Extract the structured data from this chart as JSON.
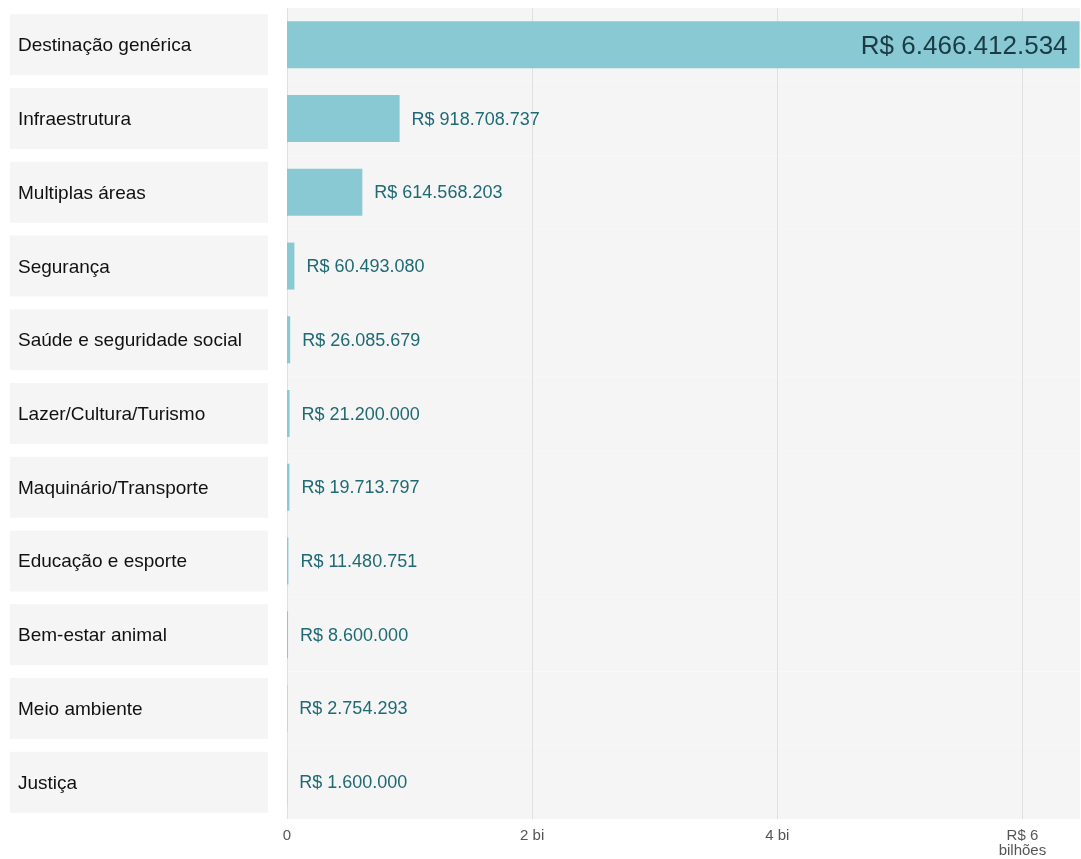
{
  "chart_data": {
    "type": "bar",
    "orientation": "horizontal",
    "categories": [
      "Destinação genérica",
      "Infraestrutura",
      "Multiplas áreas",
      "Segurança",
      "Saúde e seguridade social",
      "Lazer/Cultura/Turismo",
      "Maquinário/Transporte",
      "Educação e esporte",
      "Bem-estar animal",
      "Meio ambiente",
      "Justiça"
    ],
    "values": [
      6.466412534,
      0.918708737,
      0.614568203,
      0.06049308,
      0.026085679,
      0.0212,
      0.019713797,
      0.011480751,
      0.0086,
      0.002754293,
      0.0016
    ],
    "value_labels": [
      "R$ 6.466.412.534",
      "R$ 918.708.737",
      "R$ 614.568.203",
      "R$ 60.493.080",
      "R$ 26.085.679",
      "R$ 21.200.000",
      "R$ 19.713.797",
      "R$ 11.480.751",
      "R$ 8.600.000",
      "R$ 2.754.293",
      "R$ 1.600.000"
    ],
    "color": "#88c9d4",
    "xlim": [
      0,
      6.47
    ],
    "xticks": [
      0,
      {
        "value": 2,
        "label": "2 bi"
      },
      {
        "value": 4,
        "label": "4 bi"
      },
      {
        "value": 6,
        "label": "R$ 6\nbilhões"
      }
    ],
    "grid": "x"
  }
}
